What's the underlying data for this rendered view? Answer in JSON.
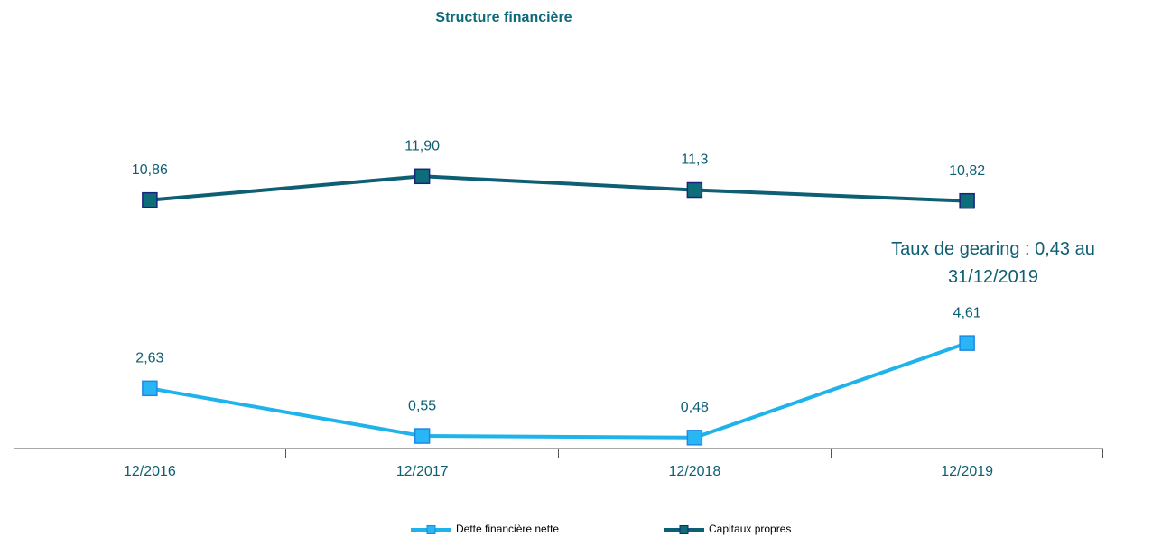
{
  "chart_data": {
    "type": "line",
    "title": "Structure financière",
    "categories": [
      "12/2016",
      "12/2017",
      "12/2018",
      "12/2019"
    ],
    "series": [
      {
        "name": "Dette financière nette",
        "color": "#1fb3ec",
        "marker_fill": "#29b6f6",
        "marker_stroke": "#1e88e5",
        "values": [
          2.63,
          0.55,
          0.48,
          4.61
        ],
        "value_labels": [
          "2,63",
          "0,55",
          "0,48",
          "4,61"
        ]
      },
      {
        "name": "Capitaux propres",
        "color": "#0e5f73",
        "marker_fill": "#0d6e7a",
        "marker_stroke": "#1a237e",
        "values": [
          10.86,
          11.9,
          11.3,
          10.82
        ],
        "value_labels": [
          "10,86",
          "11,90",
          "11,3",
          "10,82"
        ]
      }
    ],
    "ylim": [
      0,
      17
    ],
    "grid": false,
    "legend": "bottom",
    "annotation": "Taux de gearing : 0,43 au 31/12/2019"
  }
}
